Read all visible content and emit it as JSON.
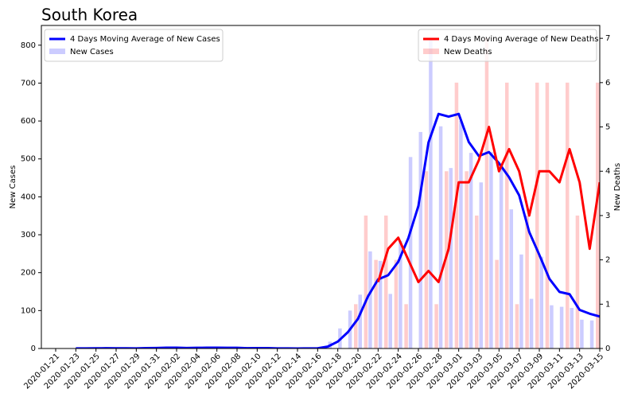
{
  "chart_data": {
    "type": "bar",
    "title": "South Korea",
    "ylabel": "New Cases",
    "y2label": "New Deaths",
    "ylim": [
      0,
      852
    ],
    "yticks": [
      0,
      100,
      200,
      300,
      400,
      500,
      600,
      700,
      800
    ],
    "y2lim": [
      0,
      7.29
    ],
    "y2ticks": [
      0,
      1,
      2,
      3,
      4,
      5,
      6,
      7
    ],
    "categories": [
      "2020-01-21",
      null,
      "2020-01-23",
      null,
      "2020-01-25",
      null,
      "2020-01-27",
      null,
      "2020-01-29",
      null,
      "2020-01-31",
      null,
      "2020-02-02",
      null,
      "2020-02-04",
      null,
      "2020-02-06",
      null,
      "2020-02-08",
      null,
      "2020-02-10",
      null,
      "2020-02-12",
      null,
      "2020-02-14",
      null,
      "2020-02-16",
      null,
      "2020-02-18",
      null,
      "2020-02-20",
      null,
      "2020-02-22",
      null,
      "2020-02-24",
      null,
      "2020-02-26",
      null,
      "2020-02-28",
      null,
      "2020-03-01",
      null,
      "2020-03-03",
      null,
      "2020-03-05",
      null,
      "2020-03-07",
      null,
      "2020-03-09",
      null,
      "2020-03-11",
      null,
      "2020-03-13",
      null,
      "2020-03-15"
    ],
    "series": [
      {
        "name": "4 Days Moving Average of New Cases",
        "type": "line",
        "color": "#0000ff",
        "legend": "upper left",
        "values": [
          null,
          null,
          0.25,
          0.25,
          0.5,
          0.75,
          0.5,
          0.5,
          0.25,
          1,
          1.25,
          2,
          2,
          1.25,
          1.75,
          2,
          2,
          1.75,
          1.75,
          0.75,
          1,
          1,
          0.25,
          0.25,
          0,
          0.25,
          0.5,
          5,
          18.25,
          43,
          78.25,
          137.75,
          182.25,
          193.25,
          228.75,
          291,
          376,
          543.25,
          618.75,
          611.5,
          618.75,
          544.5,
          507.5,
          518,
          488.75,
          451.5,
          404,
          307.25,
          247,
          183.75,
          149.25,
          143.25,
          101.75,
          91.75,
          84.25
        ]
      },
      {
        "name": "New Cases",
        "type": "bar",
        "color": "#0000ff",
        "alpha": 0.2,
        "legend": "upper left",
        "values": [
          0,
          0,
          1,
          0,
          1,
          1,
          0,
          0,
          0,
          4,
          1,
          3,
          0,
          1,
          3,
          4,
          0,
          0,
          3,
          0,
          1,
          0,
          0,
          0,
          0,
          1,
          1,
          18,
          53,
          100,
          142,
          256,
          231,
          144,
          284,
          505,
          571,
          813,
          586,
          476,
          600,
          516,
          438,
          518,
          483,
          367,
          248,
          131,
          242,
          114,
          110,
          107,
          76,
          74,
          80
        ]
      },
      {
        "name": "4 Days Moving Average of New Deaths",
        "type": "line",
        "color": "#ff0000",
        "axis": "y2",
        "legend": "upper right",
        "values": [
          null,
          null,
          null,
          null,
          null,
          null,
          null,
          null,
          null,
          null,
          null,
          null,
          null,
          null,
          null,
          null,
          null,
          null,
          null,
          null,
          null,
          null,
          null,
          null,
          null,
          null,
          null,
          null,
          null,
          null,
          null,
          null,
          1.5,
          2.25,
          2.5,
          2,
          1.5,
          1.75,
          1.5,
          2.25,
          3.75,
          3.75,
          4.25,
          5,
          4,
          4.5,
          4,
          3,
          4,
          4,
          3.75,
          4.5,
          3.75,
          2.25,
          3.75
        ]
      },
      {
        "name": "New Deaths",
        "type": "bar",
        "color": "#ff0000",
        "alpha": 0.2,
        "axis": "y2",
        "legend": "upper right",
        "values": [
          0,
          0,
          0,
          0,
          0,
          0,
          0,
          0,
          0,
          0,
          0,
          0,
          0,
          0,
          0,
          0,
          0,
          0,
          0,
          0,
          0,
          0,
          0,
          0,
          0,
          0,
          0,
          0,
          0,
          0,
          1,
          3,
          2,
          3,
          2,
          1,
          0,
          4,
          1,
          4,
          6,
          4,
          3,
          7,
          2,
          6,
          1,
          3,
          6,
          6,
          0,
          6,
          3,
          0,
          6
        ]
      }
    ]
  }
}
